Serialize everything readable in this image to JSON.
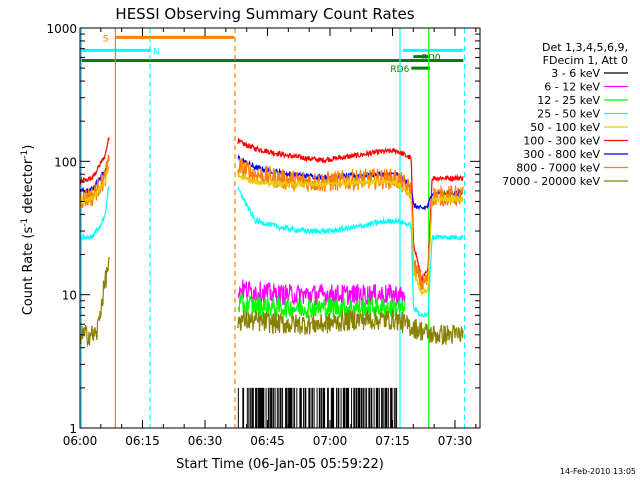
{
  "chart_data": {
    "type": "line",
    "title": "HESSI Observing Summary Count Rates",
    "xlabel": "Start Time (06-Jan-05 05:59:22)",
    "ylabel_main": "Count Rate (s",
    "ylabel_sup1": "-1",
    "ylabel_mid": " detector",
    "ylabel_sup2": "-1",
    "ylabel_end": ")",
    "yscale": "log",
    "ylim": [
      1,
      1000
    ],
    "xlim": [
      0,
      96
    ],
    "x_tick_minutes": [
      0,
      15,
      30,
      45,
      60,
      75,
      90
    ],
    "x_tick_labels": [
      "06:00",
      "06:15",
      "06:30",
      "06:45",
      "07:00",
      "07:15",
      "07:30"
    ],
    "y_tick_values": [
      1,
      10,
      100,
      1000
    ],
    "y_tick_labels": [
      "1",
      "10",
      "100",
      "1000"
    ],
    "legend": {
      "header": [
        "Det 1,3,4,5,6,9,",
        "FDecim 1, Att 0"
      ],
      "entries": [
        {
          "label": "3 - 6 keV",
          "color": "#000000"
        },
        {
          "label": "6 - 12 keV",
          "color": "#ff00ff"
        },
        {
          "label": "12 - 25 keV",
          "color": "#00ff00"
        },
        {
          "label": "25 - 50 keV",
          "color": "#00ffff"
        },
        {
          "label": "50 - 100 keV",
          "color": "#e6cc00"
        },
        {
          "label": "100 - 300 keV",
          "color": "#ff0000"
        },
        {
          "label": "300 - 800 keV",
          "color": "#0000ff"
        },
        {
          "label": "800 - 7000 keV",
          "color": "#ff8000"
        },
        {
          "label": "7000 - 20000 keV",
          "color": "#888000"
        }
      ]
    },
    "top_bars": [
      {
        "label": "S",
        "color": "#ff8000",
        "start": 8.5,
        "end": 37,
        "value": 850,
        "label_x": 5.5
      },
      {
        "label": "N",
        "color": "#00ffff",
        "start": 0,
        "end": 17,
        "value": 680,
        "label_x": 17.5
      },
      {
        "label": "",
        "color": "#00ffff",
        "start": 77.5,
        "end": 92,
        "value": 680,
        "label_x": 0
      },
      {
        "label": "",
        "color": "#008000",
        "start": 0,
        "end": 92,
        "value": 570,
        "label_x": 0
      },
      {
        "label": "RD6",
        "color": "#008000",
        "start": 79.5,
        "end": 84,
        "value": 500,
        "label_x": 74.5
      },
      {
        "label": "RD0",
        "color": "#008000",
        "start": 80,
        "end": 84,
        "value": 610,
        "label_x": 82
      }
    ],
    "vlines": [
      {
        "x": 0.3,
        "color": "#00ffff",
        "dash": false
      },
      {
        "x": 8.5,
        "color": "#ff8000",
        "dash": false
      },
      {
        "x": 16.8,
        "color": "#00ffff",
        "dash": true
      },
      {
        "x": 37.2,
        "color": "#ff8000",
        "dash": true
      },
      {
        "x": 76.8,
        "color": "#00ffff",
        "dash": false
      },
      {
        "x": 83.7,
        "color": "#00ff00",
        "dash": false
      },
      {
        "x": 92.3,
        "color": "#00ffff",
        "dash": true
      }
    ],
    "series": [
      {
        "name": "100 - 300 keV",
        "color": "#ff0000",
        "x": [
          0,
          3,
          6,
          6.8,
          38,
          42,
          50,
          58,
          66,
          72,
          76,
          79.5,
          80,
          82,
          83.5,
          84.5,
          92
        ],
        "y": [
          70,
          75,
          110,
          145,
          140,
          125,
          110,
          102,
          110,
          118,
          120,
          105,
          25,
          13,
          15,
          75,
          75
        ]
      },
      {
        "name": "300 - 800 keV",
        "color": "#0000ff",
        "x": [
          0,
          3,
          6,
          6.8,
          38,
          42,
          50,
          58,
          66,
          72,
          76,
          79.5,
          80,
          82,
          83.5,
          84.5,
          92
        ],
        "y": [
          60,
          62,
          85,
          105,
          105,
          90,
          80,
          76,
          78,
          80,
          80,
          65,
          47,
          44,
          46,
          58,
          58
        ]
      },
      {
        "name": "800 - 7000 keV",
        "color": "#ff8000",
        "x": [
          0,
          3,
          6,
          6.8,
          38,
          42,
          50,
          58,
          66,
          72,
          76,
          79.5,
          80,
          82,
          83.5,
          84.5,
          92
        ],
        "y": [
          52,
          55,
          75,
          95,
          90,
          80,
          72,
          70,
          73,
          74,
          74,
          60,
          17,
          12,
          13,
          55,
          55
        ]
      },
      {
        "name": "50 - 100 keV",
        "color": "#e6cc00",
        "x": [
          0,
          3,
          6,
          6.8,
          38,
          42,
          50,
          58,
          66,
          72,
          76,
          79.5,
          80,
          82,
          83.5,
          84.5,
          92
        ],
        "y": [
          50,
          53,
          70,
          88,
          78,
          70,
          67,
          67,
          70,
          70,
          69,
          55,
          15,
          10,
          11,
          52,
          52
        ]
      },
      {
        "name": "25 - 50 keV",
        "color": "#00ffff",
        "x": [
          0,
          3,
          6,
          6.8,
          38,
          42,
          48,
          54,
          60,
          66,
          72,
          76,
          79.5,
          80,
          82,
          83.5,
          84.5,
          92
        ],
        "y": [
          27,
          27,
          38,
          62,
          62,
          36,
          32,
          30,
          30,
          32,
          35,
          36,
          33,
          8,
          7,
          7,
          27,
          27
        ]
      },
      {
        "name": "6 - 12 keV",
        "color": "#ff00ff",
        "x": [
          38,
          48,
          58,
          66,
          72,
          76,
          78
        ],
        "y": [
          11,
          10,
          10,
          10,
          10,
          10,
          9.5
        ]
      },
      {
        "name": "12 - 25 keV",
        "color": "#00ff00",
        "x": [
          38,
          48,
          58,
          66,
          72,
          76,
          78
        ],
        "y": [
          8.5,
          8,
          8,
          8,
          8,
          8,
          7.5
        ]
      },
      {
        "name": "7000 - 20000 keV",
        "color": "#888000",
        "x": [
          0,
          4,
          5.5,
          6.8,
          38,
          50,
          58,
          66,
          72,
          76,
          78,
          84.5,
          92
        ],
        "y": [
          5,
          5,
          10,
          17,
          6.5,
          6,
          6,
          6.5,
          6.5,
          6.5,
          6,
          5,
          5
        ]
      },
      {
        "name": "3 - 6 keV",
        "color": "#000000",
        "x": [
          38,
          48,
          56,
          62,
          68,
          72,
          76
        ],
        "y": [
          2,
          2,
          2,
          2,
          2,
          2,
          2
        ]
      }
    ]
  },
  "footer": {
    "timestamp": "14-Feb-2010 13:05"
  }
}
